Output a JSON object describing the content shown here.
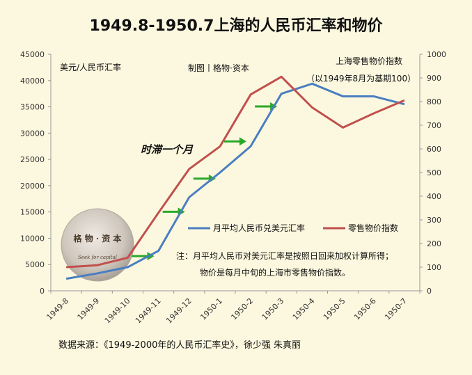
{
  "chart_data": {
    "type": "line",
    "title": "1949.8-1950.7上海的人民币汇率和物价",
    "categories": [
      "1949-8",
      "1949-9",
      "1949-10",
      "1949-11",
      "1949-12",
      "1950-1",
      "1950-2",
      "1950-3",
      "1950-4",
      "1950-5",
      "1950-6",
      "1950-7"
    ],
    "y_left": {
      "label": "美元/人民币汇率",
      "ylim": [
        0,
        45000
      ],
      "ticks": [
        0,
        5000,
        10000,
        15000,
        20000,
        25000,
        30000,
        35000,
        40000,
        45000
      ]
    },
    "y_right": {
      "label": "上海零售物价指数",
      "sublabel": "（以1949年8月为基期100）",
      "ylim": [
        0,
        1000
      ],
      "ticks": [
        0,
        100,
        200,
        300,
        400,
        500,
        600,
        700,
        800,
        900,
        1000
      ]
    },
    "series": [
      {
        "name": "月平均人民币兑美元汇率",
        "axis": "left",
        "color": "#4a7ec0",
        "values": [
          2300,
          3300,
          4500,
          7600,
          17800,
          22500,
          27500,
          37500,
          39400,
          37000,
          37000,
          35500
        ]
      },
      {
        "name": "零售物价指数",
        "axis": "right",
        "color": "#c0504d",
        "values": [
          100,
          108,
          140,
          330,
          515,
          610,
          830,
          905,
          775,
          690,
          750,
          805
        ]
      }
    ],
    "annotation": "时滞一个月",
    "credit": "制图丨格物·资本",
    "note_lines": [
      "注：月平均人民币对美元汇率是按照日回来加权计算所得；",
      "物价是每月中旬的上海市零售物价指数。"
    ],
    "source": "数据来源：《1949-2000年的人民币汇率史》，徐少强 朱真丽",
    "arrow_color": "#2aa82a",
    "grid": false,
    "legend_position": "center-right"
  },
  "seal": {
    "text": "格 物 · 资 本",
    "subtext": "Seek for capital"
  }
}
